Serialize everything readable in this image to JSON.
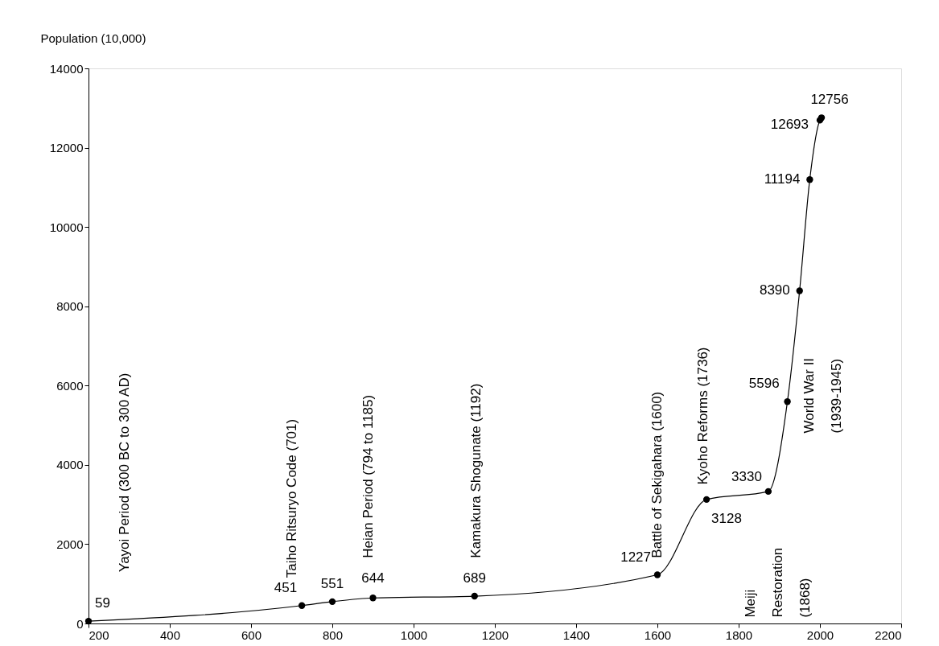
{
  "chart_data": {
    "type": "line",
    "ylabel": "Population (10,000)",
    "x": [
      200,
      725,
      800,
      900,
      1150,
      1600,
      1721,
      1873,
      1920,
      1950,
      1975,
      2000,
      2004
    ],
    "series": [
      {
        "color": "#000000",
        "values": [
          59,
          451,
          551,
          644,
          689,
          1227,
          3128,
          3330,
          5596,
          8390,
          11194,
          12693,
          12756
        ]
      }
    ],
    "xlim": [
      200,
      2200
    ],
    "xticks": [
      200,
      400,
      600,
      800,
      1000,
      1200,
      1400,
      1600,
      1800,
      2000,
      2200
    ],
    "ylim": [
      0,
      14000
    ],
    "yticks": [
      0,
      2000,
      4000,
      6000,
      8000,
      10000,
      12000,
      14000
    ],
    "marker": "circle",
    "line_style": "solid",
    "grid": false,
    "legend": false,
    "data_labels": true,
    "annotations": [
      "Yayoi Period (300 BC to 300 AD)",
      "Taiho Ritsuryo Code (701)",
      "Heian Period (794 to 1185)",
      "Kamakura Shogunate (1192)",
      "Battle of Sekigahara (1600)",
      "Kyoho Reforms (1736)",
      "Meiji\nRestoration\n(1868)",
      "World War II\n(1939-1945)"
    ]
  }
}
